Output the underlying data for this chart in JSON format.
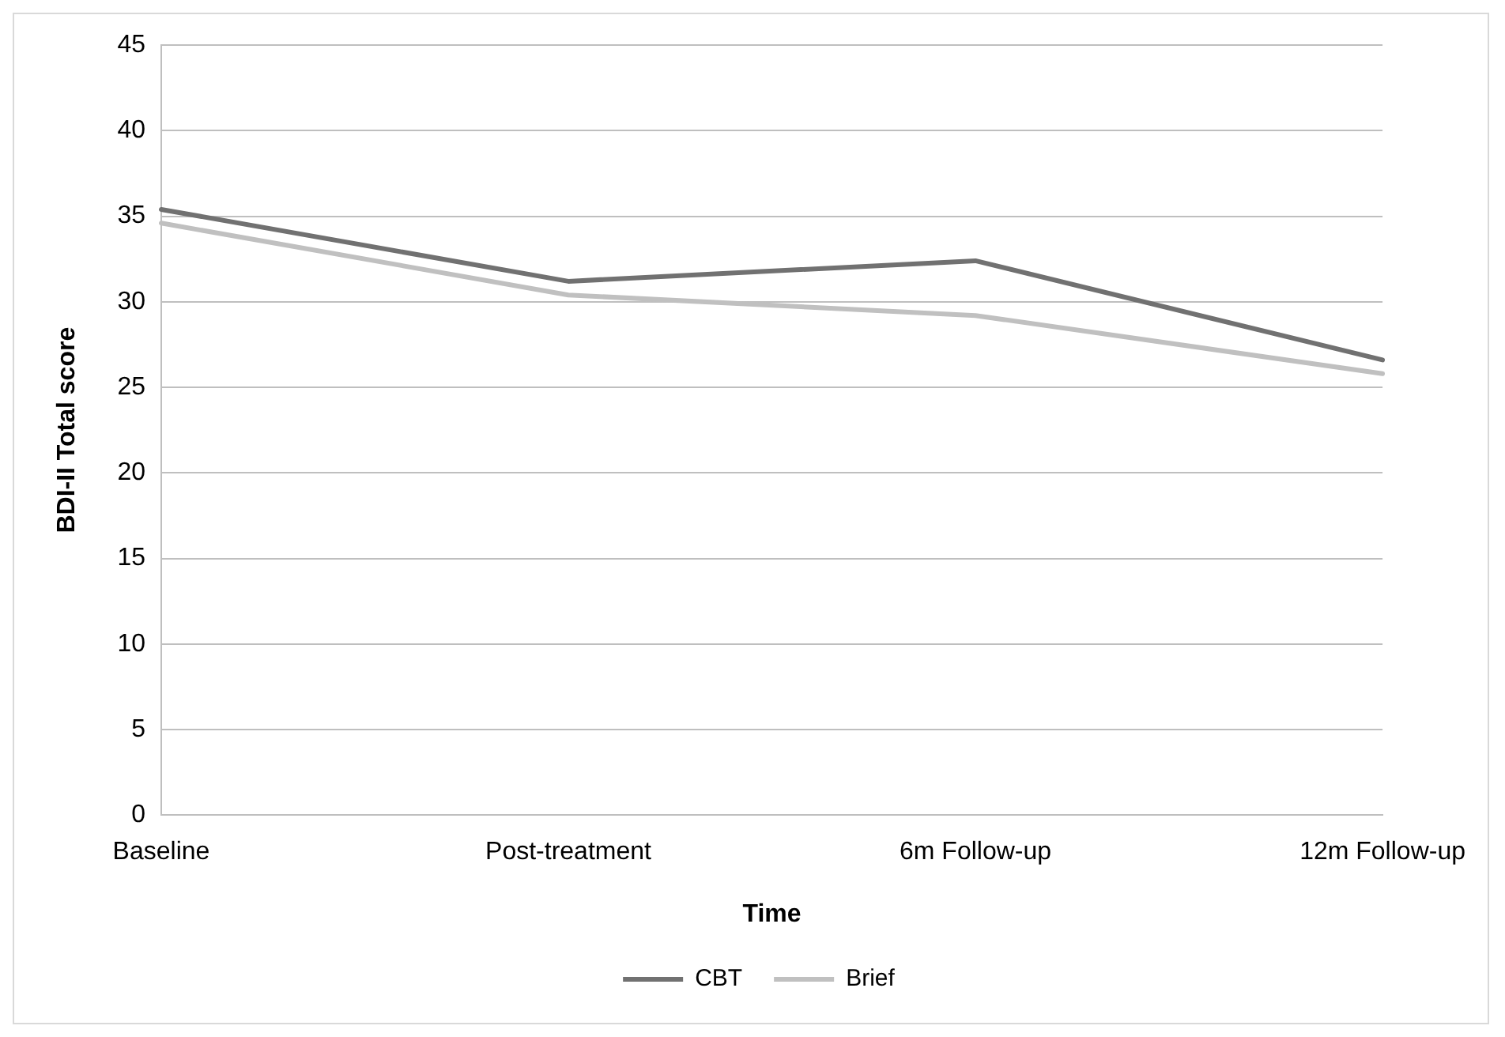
{
  "chart_data": {
    "type": "line",
    "xlabel": "Time",
    "ylabel": "BDI-II Total score",
    "categories": [
      "Baseline",
      "Post-treatment",
      "6m Follow-up",
      "12m Follow-up"
    ],
    "series": [
      {
        "name": "CBT",
        "color": "#717171",
        "values": [
          35.4,
          31.2,
          32.4,
          26.6
        ]
      },
      {
        "name": "Brief",
        "color": "#c0c0c0",
        "values": [
          34.6,
          30.4,
          29.2,
          25.8
        ]
      }
    ],
    "ylim": [
      0,
      45
    ],
    "yticks": [
      0,
      5,
      10,
      15,
      20,
      25,
      30,
      35,
      40,
      45
    ],
    "grid": "y",
    "legend": "bottom",
    "marker": "none",
    "line_style": "solid"
  }
}
